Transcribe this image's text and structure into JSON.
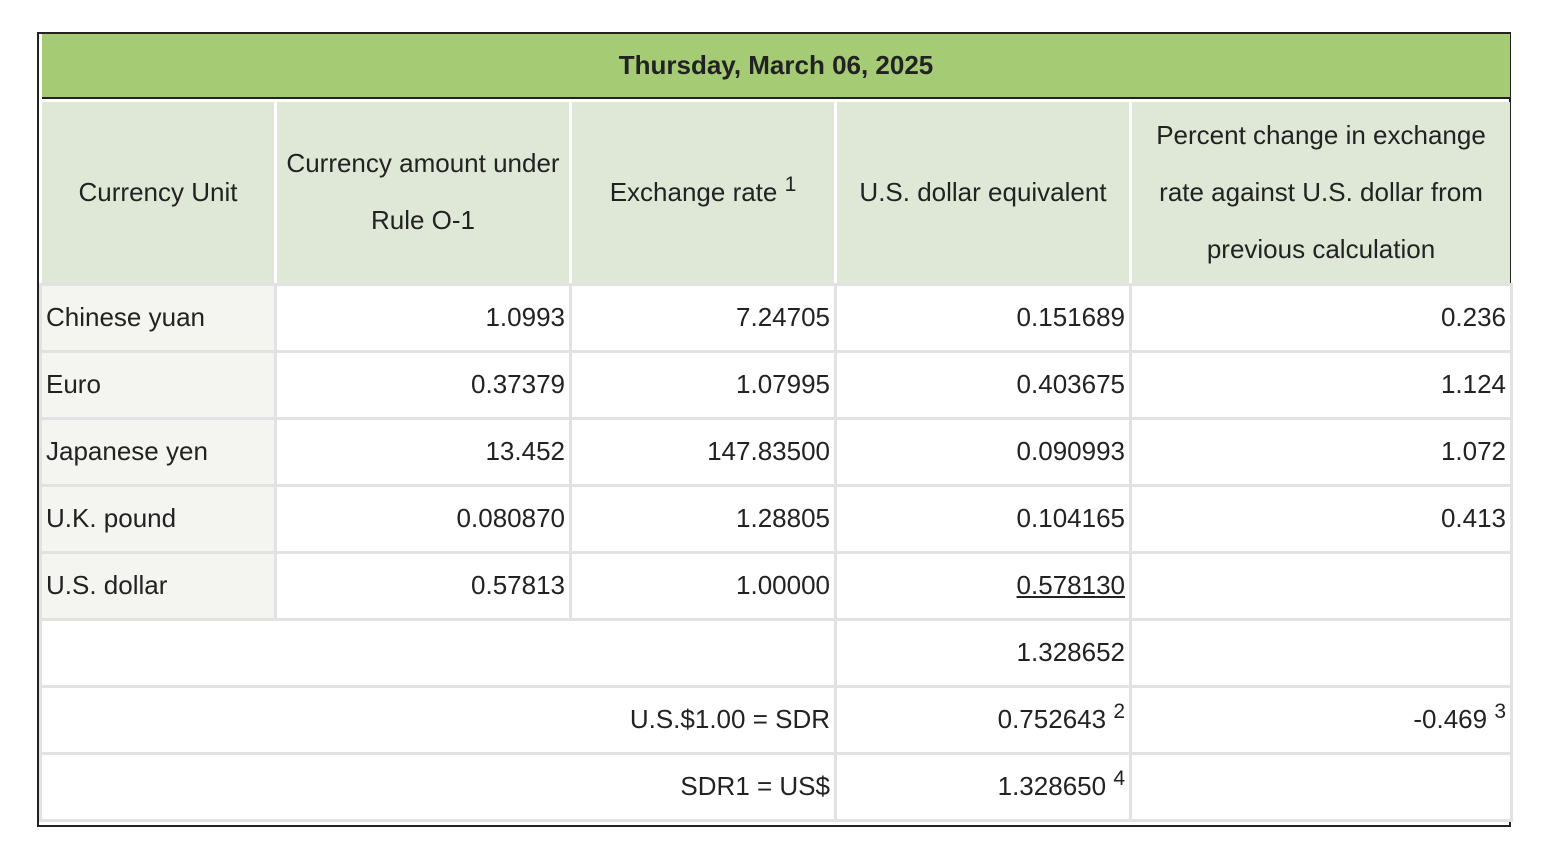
{
  "title": "Thursday, March 06, 2025",
  "headers": {
    "unit": "Currency Unit",
    "amount": "Currency amount under Rule O-1",
    "rate": "Exchange rate",
    "rate_note": "1",
    "usd": "U.S. dollar equivalent",
    "pct": "Percent change in exchange rate against U.S. dollar from previous calculation"
  },
  "rows": [
    {
      "unit": "Chinese yuan",
      "amount": "1.0993",
      "rate": "7.24705",
      "usd": "0.151689",
      "pct": "0.236"
    },
    {
      "unit": "Euro",
      "amount": "0.37379",
      "rate": "1.07995",
      "usd": "0.403675",
      "pct": "1.124"
    },
    {
      "unit": "Japanese yen",
      "amount": "13.452",
      "rate": "147.83500",
      "usd": "0.090993",
      "pct": "1.072"
    },
    {
      "unit": "U.K. pound",
      "amount": "0.080870",
      "rate": "1.28805",
      "usd": "0.104165",
      "pct": "0.413"
    },
    {
      "unit": "U.S. dollar",
      "amount": "0.57813",
      "rate": "1.00000",
      "usd": "0.578130",
      "pct": ""
    }
  ],
  "total": "1.328652",
  "usd_to_sdr": {
    "label": "U.S.$1.00 = SDR",
    "value": "0.752643",
    "note": "2",
    "pct": "-0.469",
    "pct_note": "3"
  },
  "sdr_to_usd": {
    "label": "SDR1 = US$",
    "value": "1.328650",
    "note": "4"
  }
}
